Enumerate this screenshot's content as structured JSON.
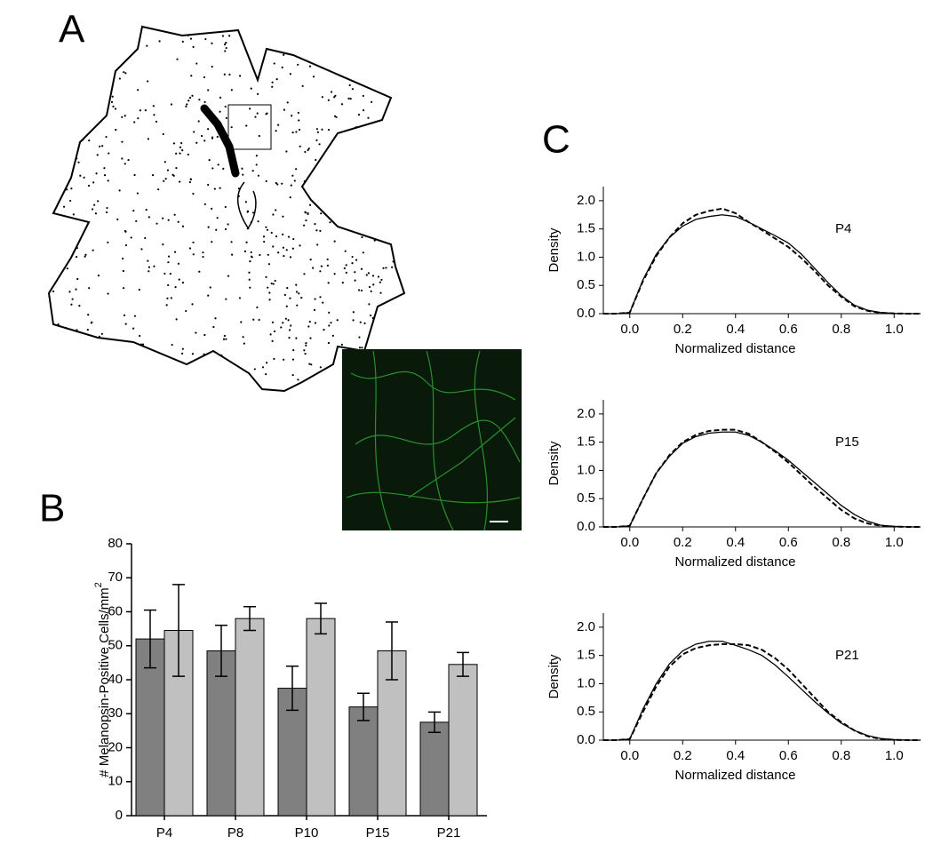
{
  "panel_labels": [
    "A",
    "B",
    "C"
  ],
  "chart_data": [
    {
      "type": "bar",
      "ylabel": "# Melanopsin-Positive Cells/mm",
      "ylabel_superscript": "2",
      "categories": [
        "P4",
        "P8",
        "P10",
        "P15",
        "P21"
      ],
      "series": [
        {
          "color": "#808080",
          "values": [
            52,
            48.5,
            37.5,
            32,
            27.5
          ],
          "errors": [
            8.5,
            7.5,
            6.5,
            4,
            3
          ]
        },
        {
          "color": "#c0c0c0",
          "values": [
            54.5,
            58,
            58,
            48.5,
            44.5
          ],
          "errors": [
            13.5,
            3.5,
            4.5,
            8.5,
            3.5
          ]
        }
      ],
      "ylim": [
        0,
        80
      ],
      "yticks": [
        0,
        10,
        20,
        30,
        40,
        50,
        60,
        70,
        80
      ]
    },
    {
      "type": "line",
      "annotation": "P4",
      "xlabel": "Normalized distance",
      "ylabel": "Density",
      "x": [
        -0.1,
        -0.05,
        0,
        0.05,
        0.1,
        0.15,
        0.2,
        0.25,
        0.3,
        0.35,
        0.4,
        0.45,
        0.5,
        0.55,
        0.6,
        0.65,
        0.7,
        0.75,
        0.8,
        0.85,
        0.9,
        0.95,
        1.0,
        1.05,
        1.1
      ],
      "series": [
        {
          "color": "#000000",
          "line_style": "solid",
          "values": [
            0,
            0,
            0.02,
            0.6,
            1.05,
            1.35,
            1.55,
            1.67,
            1.72,
            1.75,
            1.72,
            1.62,
            1.5,
            1.38,
            1.25,
            1.05,
            0.8,
            0.55,
            0.32,
            0.15,
            0.06,
            0.02,
            0.005,
            0,
            0
          ]
        },
        {
          "color": "#000000",
          "line_style": "dashed",
          "values": [
            0,
            0,
            0.02,
            0.58,
            1.02,
            1.35,
            1.6,
            1.75,
            1.82,
            1.86,
            1.78,
            1.62,
            1.48,
            1.33,
            1.18,
            0.98,
            0.75,
            0.5,
            0.3,
            0.13,
            0.05,
            0.015,
            0.003,
            0,
            0
          ]
        }
      ],
      "xlim": [
        -0.1,
        1.1
      ],
      "xticks": [
        {
          "value": 0,
          "label": "0.0"
        },
        0.2,
        0.4,
        0.6,
        0.8,
        {
          "value": 1,
          "label": "1.0"
        }
      ],
      "ylim": [
        0,
        2.25
      ],
      "yticks": [
        {
          "value": 0,
          "label": "0.0"
        },
        0.5,
        {
          "value": 1,
          "label": "1.0"
        },
        1.5,
        {
          "value": 2,
          "label": "2.0"
        }
      ]
    },
    {
      "type": "line",
      "annotation": "P15",
      "xlabel": "Normalized distance",
      "ylabel": "Density",
      "x": [
        -0.1,
        -0.05,
        0,
        0.05,
        0.1,
        0.15,
        0.2,
        0.25,
        0.3,
        0.35,
        0.4,
        0.45,
        0.5,
        0.55,
        0.6,
        0.65,
        0.7,
        0.75,
        0.8,
        0.85,
        0.9,
        0.95,
        1.0,
        1.05,
        1.1
      ],
      "series": [
        {
          "color": "#000000",
          "line_style": "solid",
          "values": [
            0,
            0,
            0.02,
            0.5,
            0.95,
            1.25,
            1.48,
            1.6,
            1.66,
            1.68,
            1.68,
            1.62,
            1.5,
            1.35,
            1.18,
            0.98,
            0.78,
            0.58,
            0.38,
            0.22,
            0.1,
            0.03,
            0.01,
            0,
            0
          ]
        },
        {
          "color": "#000000",
          "line_style": "dashed",
          "values": [
            0,
            0,
            0.02,
            0.5,
            0.95,
            1.27,
            1.5,
            1.63,
            1.7,
            1.72,
            1.72,
            1.65,
            1.5,
            1.33,
            1.14,
            0.92,
            0.7,
            0.5,
            0.3,
            0.15,
            0.06,
            0.02,
            0.005,
            0,
            0
          ]
        }
      ],
      "xlim": [
        -0.1,
        1.1
      ],
      "xticks": [
        {
          "value": 0,
          "label": "0.0"
        },
        0.2,
        0.4,
        0.6,
        0.8,
        {
          "value": 1,
          "label": "1.0"
        }
      ],
      "ylim": [
        0,
        2.25
      ],
      "yticks": [
        {
          "value": 0,
          "label": "0.0"
        },
        0.5,
        {
          "value": 1,
          "label": "1.0"
        },
        1.5,
        {
          "value": 2,
          "label": "2.0"
        }
      ]
    },
    {
      "type": "line",
      "annotation": "P21",
      "xlabel": "Normalized distance",
      "ylabel": "Density",
      "x": [
        -0.1,
        -0.05,
        0,
        0.05,
        0.1,
        0.15,
        0.2,
        0.25,
        0.3,
        0.35,
        0.4,
        0.45,
        0.5,
        0.55,
        0.6,
        0.65,
        0.7,
        0.75,
        0.8,
        0.85,
        0.9,
        0.95,
        1.0,
        1.05,
        1.1
      ],
      "series": [
        {
          "color": "#000000",
          "line_style": "solid",
          "values": [
            0,
            0,
            0.02,
            0.55,
            1.0,
            1.35,
            1.58,
            1.7,
            1.75,
            1.75,
            1.68,
            1.6,
            1.5,
            1.33,
            1.12,
            0.9,
            0.68,
            0.48,
            0.3,
            0.17,
            0.08,
            0.03,
            0.01,
            0,
            0
          ]
        },
        {
          "color": "#000000",
          "line_style": "dashed",
          "values": [
            0,
            0,
            0.02,
            0.5,
            0.95,
            1.3,
            1.52,
            1.63,
            1.68,
            1.7,
            1.7,
            1.68,
            1.6,
            1.45,
            1.25,
            1.0,
            0.75,
            0.5,
            0.32,
            0.17,
            0.07,
            0.02,
            0.005,
            0,
            0
          ]
        }
      ],
      "xlim": [
        -0.1,
        1.1
      ],
      "xticks": [
        {
          "value": 0,
          "label": "0.0"
        },
        0.2,
        0.4,
        0.6,
        0.8,
        {
          "value": 1,
          "label": "1.0"
        }
      ],
      "ylim": [
        0,
        2.25
      ],
      "yticks": [
        {
          "value": 0,
          "label": "0.0"
        },
        0.5,
        {
          "value": 1,
          "label": "1.0"
        },
        1.5,
        {
          "value": 2,
          "label": "2.0"
        }
      ]
    }
  ]
}
